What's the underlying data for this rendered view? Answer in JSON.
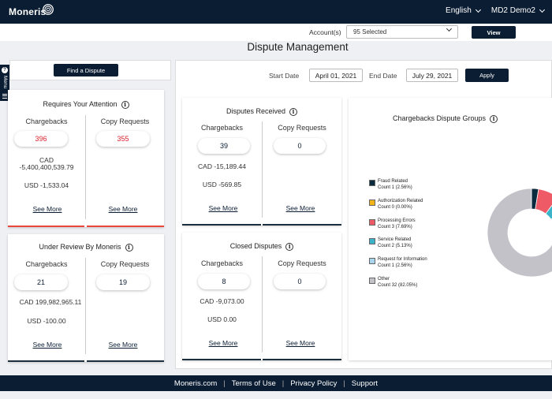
{
  "header": {
    "logo_text": "Moneris",
    "language": "English",
    "user": "MD2 Demo2"
  },
  "accounts": {
    "label": "Account(s)",
    "selected": "95 Selected",
    "view_button": "View"
  },
  "page_title": "Dispute Management",
  "find_button": "Find a Dispute",
  "side_menu_label": "Menu",
  "date_filter": {
    "start_label": "Start Date",
    "start_value": "April 01, 2021",
    "end_label": "End Date",
    "end_value": "July 29, 2021",
    "apply_button": "Apply"
  },
  "cards": {
    "attention": {
      "title": "Requires Your Attention",
      "chargebacks_label": "Chargebacks",
      "chargebacks_count": "396",
      "copy_label": "Copy Requests",
      "copy_count": "355",
      "cad_label": "CAD",
      "cad_amount": "-5,400,400,539.79",
      "usd": "USD -1,533.04",
      "see_more_1": "See More",
      "see_more_2": "See More"
    },
    "review": {
      "title": "Under Review By Moneris",
      "chargebacks_label": "Chargebacks",
      "chargebacks_count": "21",
      "copy_label": "Copy Requests",
      "copy_count": "19",
      "cad": "CAD 199,982,965.11",
      "usd": "USD -100.00",
      "see_more_1": "See More",
      "see_more_2": "See More"
    },
    "received": {
      "title": "Disputes Received",
      "chargebacks_label": "Chargebacks",
      "chargebacks_count": "39",
      "copy_label": "Copy Requests",
      "copy_count": "0",
      "cad": "CAD -15,189.44",
      "usd": "USD -569.85",
      "see_more_1": "See More",
      "see_more_2": "See More"
    },
    "closed": {
      "title": "Closed Disputes",
      "chargebacks_label": "Chargebacks",
      "chargebacks_count": "8",
      "copy_label": "Copy Requests",
      "copy_count": "0",
      "cad": "CAD -9,073.00",
      "usd": "USD 0.00",
      "see_more_1": "See More",
      "see_more_2": "See More"
    }
  },
  "groups": {
    "title": "Chargebacks Dispute Groups",
    "legend": [
      {
        "name": "Fraud Related",
        "count": "Count 1 (2.56%)",
        "color": "#0b2a3d"
      },
      {
        "name": "Authorization Related",
        "count": "Count 0 (0.00%)",
        "color": "#f2b418"
      },
      {
        "name": "Processing Errors",
        "count": "Count 3 (7.69%)",
        "color": "#ee5a66"
      },
      {
        "name": "Service Related",
        "count": "Count 2 (5.13%)",
        "color": "#3bb4c9"
      },
      {
        "name": "Request for Information",
        "count": "Count 1 (2.56%)",
        "color": "#a8d4ee"
      },
      {
        "name": "Other",
        "count": "Count 32 (82.05%)",
        "color": "#c4c2c9"
      }
    ]
  },
  "chart_data": {
    "type": "pie",
    "title": "Chargebacks Dispute Groups",
    "labels": [
      "Fraud Related",
      "Authorization Related",
      "Processing Errors",
      "Service Related",
      "Request for Information",
      "Other"
    ],
    "values": [
      1,
      0,
      3,
      2,
      1,
      32
    ],
    "percent": [
      2.56,
      0.0,
      7.69,
      5.13,
      2.56,
      82.05
    ],
    "colors": [
      "#0b2a3d",
      "#f2b418",
      "#ee5a66",
      "#3bb4c9",
      "#a8d4ee",
      "#c4c2c9"
    ],
    "legend_position": "left"
  },
  "footer": {
    "links": [
      "Moneris.com",
      "Terms of Use",
      "Privacy Policy",
      "Support"
    ]
  },
  "colors": {
    "navy": "#0b1d33",
    "alert_red": "#d9232e"
  }
}
